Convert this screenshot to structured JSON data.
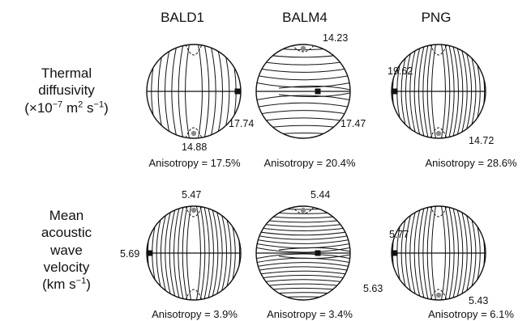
{
  "columns": [
    "BALD1",
    "BALM4",
    "PNG"
  ],
  "rows": [
    {
      "label_lines": [
        "Thermal",
        "diffusivity",
        "(×10",
        "−7",
        " m",
        "2",
        " s",
        "−1",
        ")"
      ],
      "panels": [
        {
          "max": "17.74",
          "min": "14.88",
          "anisotropy": "Anisotropy = 17.5%",
          "max_pos": "right",
          "contour_type": "vertical"
        },
        {
          "max": "17.47",
          "min": "14.23",
          "anisotropy": "Anisotropy = 20.4%",
          "max_pos": "center",
          "contour_type": "horizontal"
        },
        {
          "max": "19.62",
          "min": "14.72",
          "anisotropy": "Anisotropy = 28.6%",
          "max_pos": "left",
          "contour_type": "vertical-dense"
        }
      ]
    },
    {
      "label_lines": [
        "Mean",
        "acoustic",
        "wave",
        "velocity",
        "(km s",
        "−1",
        ")"
      ],
      "panels": [
        {
          "max": "5.69",
          "min": "5.47",
          "anisotropy": "Anisotropy = 3.9%",
          "max_pos": "left",
          "contour_type": "vertical-dense"
        },
        {
          "max": "5.63",
          "min": "5.44",
          "anisotropy": "Anisotropy = 3.4%",
          "max_pos": "center",
          "contour_type": "horizontal-dense"
        },
        {
          "max": "5.77",
          "min": "5.43",
          "anisotropy": "Anisotropy = 6.1%",
          "max_pos": "left",
          "contour_type": "vertical-dense"
        }
      ]
    }
  ],
  "colors": {
    "minimum_marker": "#888888",
    "maximum_marker": "#111111"
  }
}
